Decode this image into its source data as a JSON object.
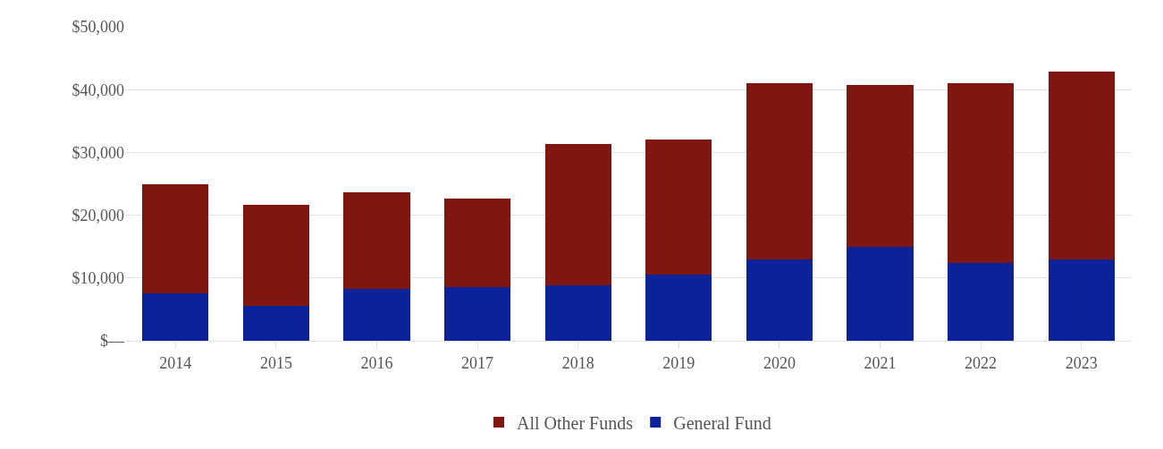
{
  "chart_data": {
    "type": "bar",
    "stacked": true,
    "categories": [
      "2014",
      "2015",
      "2016",
      "2017",
      "2018",
      "2019",
      "2020",
      "2021",
      "2022",
      "2023"
    ],
    "series": [
      {
        "name": "General Fund",
        "color": "#0b2299",
        "values": [
          7600,
          5600,
          8200,
          8500,
          8800,
          10500,
          13000,
          15000,
          12400,
          13000
        ]
      },
      {
        "name": "All Other Funds",
        "color": "#7f1710",
        "values": [
          17400,
          16100,
          15400,
          14200,
          22600,
          21500,
          28000,
          25700,
          28600,
          29900
        ]
      }
    ],
    "ylim": [
      0,
      50000
    ],
    "yticks": [
      {
        "value": 0,
        "label": "$—"
      },
      {
        "value": 10000,
        "label": "$10,000"
      },
      {
        "value": 20000,
        "label": "$20,000"
      },
      {
        "value": 30000,
        "label": "$30,000"
      },
      {
        "value": 40000,
        "label": "$40,000"
      },
      {
        "value": 50000,
        "label": "$50,000"
      }
    ],
    "grid": "y",
    "legend": "bottom"
  }
}
